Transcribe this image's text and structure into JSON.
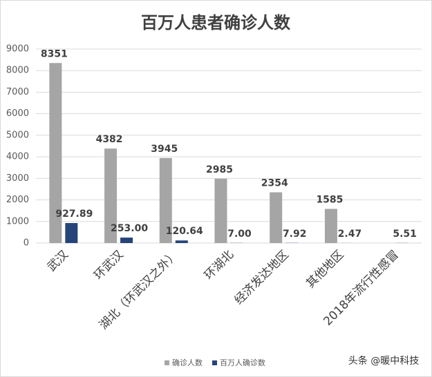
{
  "chart_data": {
    "type": "bar",
    "title": "百万人患者确诊人数",
    "categories": [
      "武汉",
      "环武汉",
      "湖北（环武汉之外）",
      "环湖北",
      "经济发达地区",
      "其他地区",
      "2018年流行性感冒"
    ],
    "series": [
      {
        "name": "确诊人数",
        "color": "#a5a5a5",
        "values": [
          8351,
          4382,
          3945,
          2985,
          2354,
          1585,
          null
        ]
      },
      {
        "name": "百万人确诊数",
        "color": "#264478",
        "values": [
          927.89,
          253,
          120.64,
          7,
          7.92,
          2.47,
          5.51
        ],
        "value_labels": [
          "927.89",
          "253.00",
          "120.64",
          "7.00",
          "7.92",
          "2.47",
          "5.51"
        ]
      }
    ],
    "ylim": [
      0,
      9000
    ],
    "yticks": [
      0,
      1000,
      2000,
      3000,
      4000,
      5000,
      6000,
      7000,
      8000,
      9000
    ],
    "grid": true,
    "legend": "bottom",
    "watermark": "头条 @暖中科技"
  }
}
